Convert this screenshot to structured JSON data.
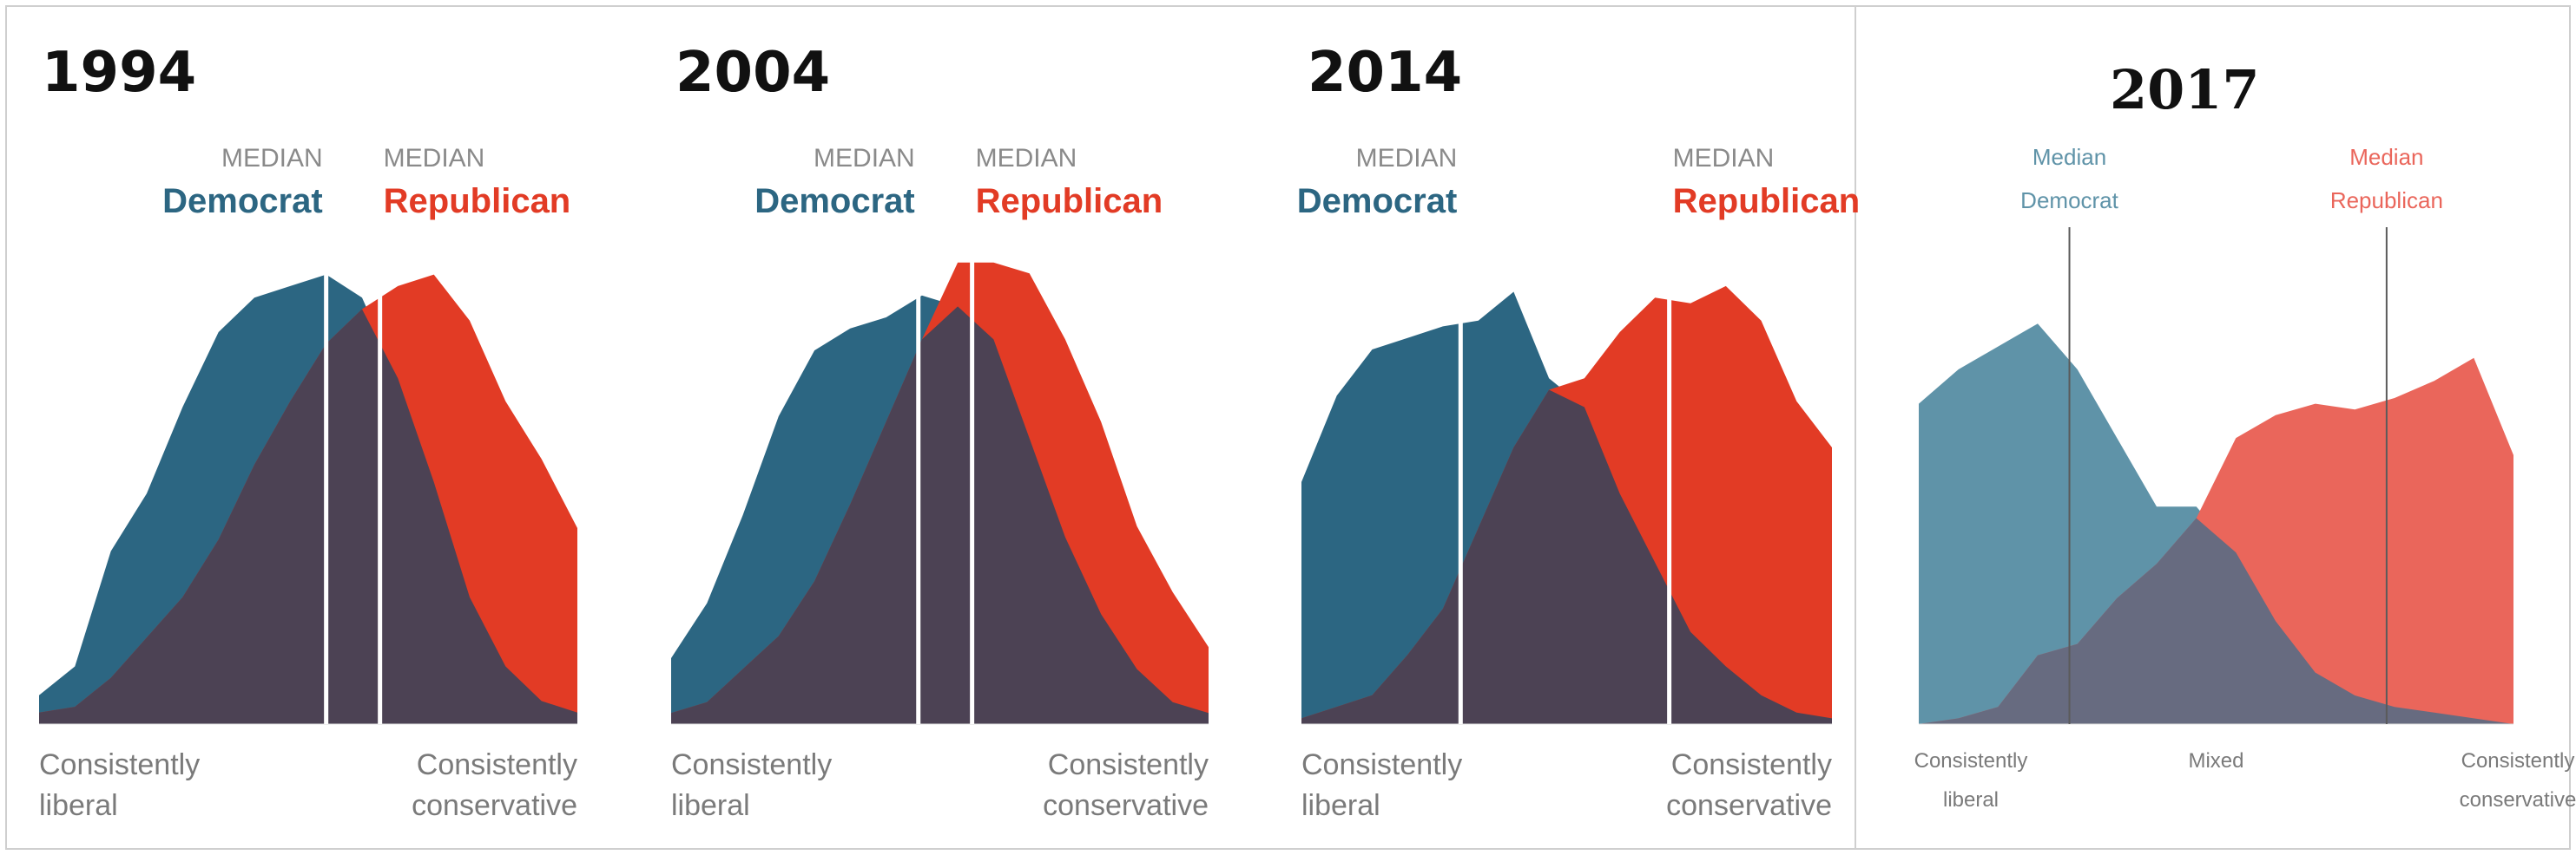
{
  "colors": {
    "democrat": "#2c6682",
    "republican": "#e23b25",
    "overlap": "#4c4254",
    "democrat_2017": "#5f93a8",
    "republican_2017": "#ea665b",
    "overlap_2017": "#676b80",
    "median_label": "#8a8a8a",
    "axis_label": "#7a7a7a"
  },
  "chart_data": [
    {
      "type": "area",
      "title": "1994",
      "x_labels": {
        "left": [
          "Consistently",
          "liberal"
        ],
        "right": [
          "Consistently",
          "conservative"
        ]
      },
      "median_labels": {
        "democrat": {
          "small": "MEDIAN",
          "party": "Democrat",
          "x": 8.0
        },
        "republican": {
          "small": "MEDIAN",
          "party": "Republican",
          "x": 9.5
        }
      },
      "x": [
        0,
        1,
        2,
        3,
        4,
        5,
        6,
        7,
        8,
        9,
        10,
        11,
        12,
        13,
        14,
        15
      ],
      "series": [
        {
          "name": "Democrat",
          "values": [
            5,
            10,
            30,
            40,
            55,
            68,
            74,
            76,
            78,
            74,
            60,
            42,
            22,
            10,
            4,
            2
          ]
        },
        {
          "name": "Republican",
          "values": [
            2,
            3,
            8,
            15,
            22,
            32,
            45,
            56,
            66,
            72,
            76,
            78,
            70,
            56,
            46,
            34
          ]
        }
      ]
    },
    {
      "type": "area",
      "title": "2004",
      "x_labels": {
        "left": [
          "Consistently",
          "liberal"
        ],
        "right": [
          "Consistently",
          "conservative"
        ]
      },
      "median_labels": {
        "democrat": {
          "small": "MEDIAN",
          "party": "Democrat",
          "x": 6.9
        },
        "republican": {
          "small": "MEDIAN",
          "party": "Republican",
          "x": 8.4
        }
      },
      "x": [
        0,
        1,
        2,
        3,
        4,
        5,
        6,
        7,
        8,
        9,
        10,
        11,
        12,
        13,
        14,
        15
      ],
      "series": [
        {
          "name": "Democrat",
          "values": [
            12,
            22,
            38,
            56,
            68,
            72,
            74,
            78,
            76,
            70,
            52,
            34,
            20,
            10,
            4,
            2
          ]
        },
        {
          "name": "Republican",
          "values": [
            2,
            4,
            10,
            16,
            26,
            40,
            55,
            70,
            84,
            84,
            82,
            70,
            55,
            36,
            24,
            14
          ]
        }
      ]
    },
    {
      "type": "area",
      "title": "2014",
      "x_labels": {
        "left": [
          "Consistently",
          "liberal"
        ],
        "right": [
          "Consistently",
          "conservative"
        ]
      },
      "median_labels": {
        "democrat": {
          "small": "MEDIAN",
          "party": "Democrat",
          "x": 4.5
        },
        "republican": {
          "small": "MEDIAN",
          "party": "Republican",
          "x": 10.4
        }
      },
      "x": [
        0,
        1,
        2,
        3,
        4,
        5,
        6,
        7,
        8,
        9,
        10,
        11,
        12,
        13,
        14,
        15
      ],
      "series": [
        {
          "name": "Democrat",
          "values": [
            42,
            57,
            65,
            67,
            69,
            70,
            75,
            60,
            55,
            40,
            28,
            16,
            10,
            5,
            2,
            1
          ]
        },
        {
          "name": "Republican",
          "values": [
            1,
            3,
            5,
            12,
            20,
            34,
            48,
            58,
            60,
            68,
            74,
            73,
            76,
            70,
            56,
            48
          ]
        }
      ]
    },
    {
      "type": "area",
      "title": "2017",
      "x_labels": {
        "left": [
          "Consistently",
          "liberal"
        ],
        "center": [
          "Mixed"
        ],
        "right": [
          "Consistently",
          "conservative"
        ]
      },
      "median_labels": {
        "democrat": {
          "lines": [
            "Median",
            "Democrat"
          ],
          "x": 3.8
        },
        "republican": {
          "lines": [
            "Median",
            "Republican"
          ],
          "x": 11.8
        }
      },
      "x": [
        0,
        1,
        2,
        3,
        4,
        5,
        6,
        7,
        8,
        9,
        10,
        11,
        12,
        13,
        14,
        15
      ],
      "series": [
        {
          "name": "Democrat",
          "values": [
            56,
            62,
            66,
            70,
            62,
            50,
            38,
            38,
            30,
            18,
            9,
            5,
            3,
            2,
            1,
            0
          ]
        },
        {
          "name": "Republican",
          "values": [
            0,
            1,
            3,
            12,
            14,
            22,
            28,
            36,
            50,
            54,
            56,
            55,
            57,
            60,
            64,
            47
          ]
        }
      ]
    }
  ]
}
